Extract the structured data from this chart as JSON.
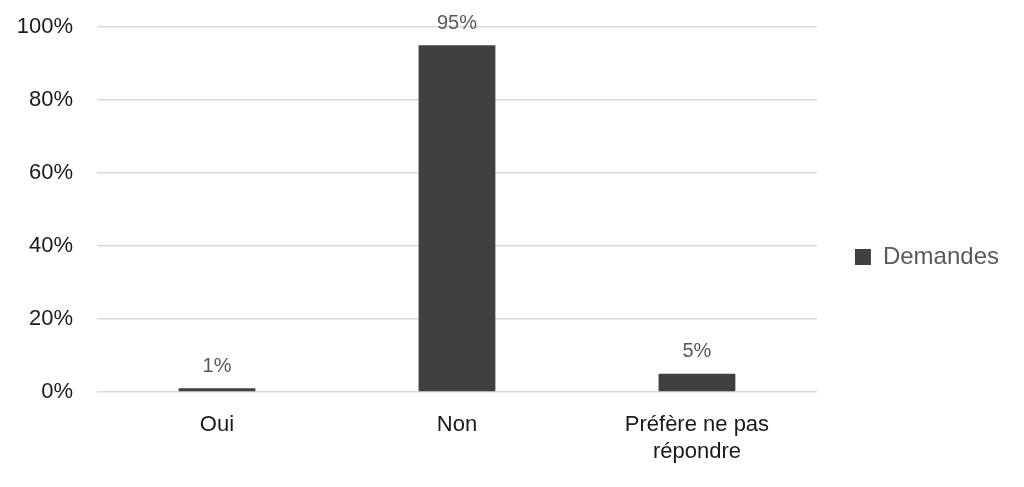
{
  "chart_data": {
    "type": "bar",
    "categories": [
      "Oui",
      "Non",
      "Préfère ne pas répondre"
    ],
    "series": [
      {
        "name": "Demandes",
        "color": "#404040",
        "values": [
          1,
          95,
          5
        ],
        "value_labels": [
          "1%",
          "95%",
          "5%"
        ]
      }
    ],
    "ylim": [
      0,
      100
    ],
    "yticks": [
      {
        "value": 0,
        "label": "0%"
      },
      {
        "value": 20,
        "label": "20%"
      },
      {
        "value": 40,
        "label": "40%"
      },
      {
        "value": 60,
        "label": "60%"
      },
      {
        "value": 80,
        "label": "80%"
      },
      {
        "value": 100,
        "label": "100%"
      }
    ],
    "grid": "y",
    "legend": "right"
  }
}
